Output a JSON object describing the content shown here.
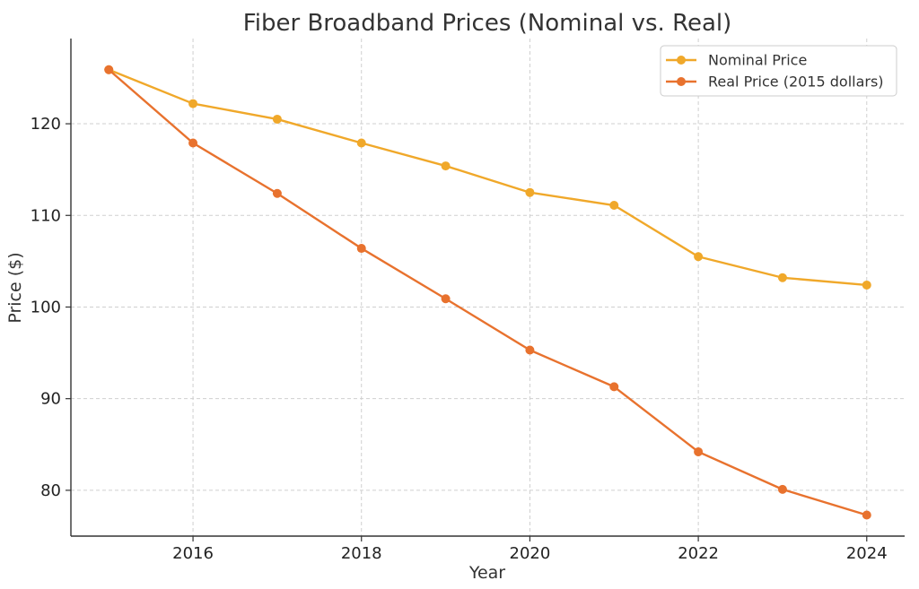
{
  "chart_data": {
    "type": "line",
    "title": "Fiber Broadband Prices (Nominal vs. Real)",
    "xlabel": "Year",
    "ylabel": "Price ($)",
    "x": [
      2015,
      2016,
      2017,
      2018,
      2019,
      2020,
      2021,
      2022,
      2023,
      2024
    ],
    "xticks": [
      "2016",
      "2018",
      "2020",
      "2022",
      "2024"
    ],
    "yticks": [
      "80",
      "90",
      "100",
      "110",
      "120"
    ],
    "xlim": [
      2014.55,
      2024.45
    ],
    "ylim": [
      75,
      129.3
    ],
    "grid": true,
    "legend_position": "top-right",
    "series": [
      {
        "name": "Nominal Price",
        "color": "#f0a82a",
        "values": [
          125.9,
          122.2,
          120.5,
          117.9,
          115.4,
          112.5,
          111.1,
          105.5,
          103.2,
          102.4
        ]
      },
      {
        "name": "Real Price (2015 dollars)",
        "color": "#e8722e",
        "values": [
          125.9,
          117.9,
          112.4,
          106.4,
          100.9,
          95.3,
          91.3,
          84.2,
          80.1,
          77.3
        ]
      }
    ]
  }
}
